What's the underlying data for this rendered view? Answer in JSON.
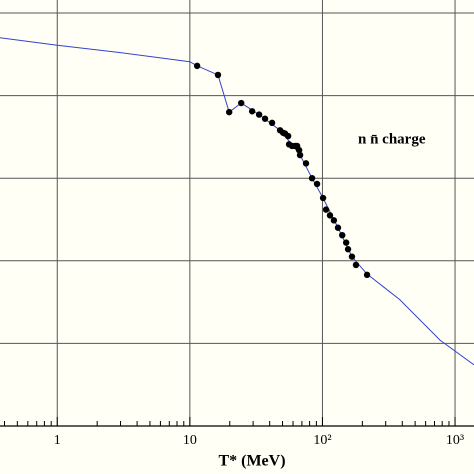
{
  "chart_data": {
    "type": "line",
    "xlabel": "T* (MeV)",
    "annotation": "n n̄ charge",
    "xscale": "log",
    "xlim": [
      0.37,
      1390
    ],
    "ylim": [
      0,
      5
    ],
    "xticks": [
      1,
      10,
      {
        "value": 100,
        "label": "10²"
      },
      {
        "value": 1000,
        "label": "10³"
      }
    ],
    "yticks": [
      0,
      1,
      2,
      3,
      4,
      5
    ],
    "ytick_labels": false,
    "grid": true,
    "series": [
      {
        "type": "line",
        "color": "#3344cc",
        "x": [
          0.37,
          1,
          3,
          10,
          11.35,
          16.3,
          19.8,
          24.4,
          33.3,
          47.9,
          56,
          67.8,
          83.5,
          101,
          131,
          167,
          217,
          383,
          770,
          1390
        ],
        "values": [
          4.7,
          4.61,
          4.52,
          4.41,
          4.36,
          4.25,
          3.8,
          3.91,
          3.77,
          3.58,
          3.45,
          3.28,
          3.0,
          2.76,
          2.4,
          2.05,
          1.84,
          1.53,
          1.04,
          0.74
        ]
      },
      {
        "type": "scatter",
        "color": "#000000",
        "x": [
          11.35,
          16.3,
          19.8,
          24.4,
          29.5,
          33.3,
          36.9,
          41.7,
          47.9,
          50.5,
          52.3,
          55.1,
          56,
          59,
          62.2,
          64.4,
          66.7,
          67.8,
          75.2,
          83.5,
          91.1,
          101.1,
          106.5,
          114,
          122,
          131,
          141,
          151,
          156,
          167,
          179,
          217
        ],
        "values": [
          4.36,
          4.25,
          3.8,
          3.91,
          3.81,
          3.77,
          3.72,
          3.67,
          3.58,
          3.55,
          3.54,
          3.51,
          3.41,
          3.39,
          3.39,
          3.39,
          3.34,
          3.28,
          3.18,
          3.0,
          2.93,
          2.76,
          2.62,
          2.55,
          2.49,
          2.4,
          2.31,
          2.22,
          2.14,
          2.05,
          1.95,
          1.83
        ]
      }
    ]
  }
}
